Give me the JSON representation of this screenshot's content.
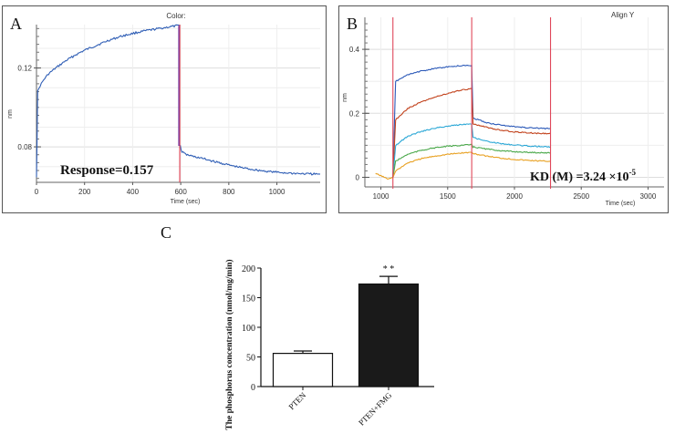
{
  "chart_data": [
    {
      "type": "line",
      "panel_label": "A",
      "title": "Color:",
      "xlabel": "Time (sec)",
      "ylabel": "nm",
      "xlim": [
        0,
        1180
      ],
      "ylim": [
        0.062,
        0.142
      ],
      "xticks": [
        0,
        200,
        400,
        600,
        800,
        1000
      ],
      "yticks": [
        0.08,
        0.12
      ],
      "ytick_labels": [
        "0.08",
        "0.12"
      ],
      "annotation": "Response=0.157",
      "marker_x": 596,
      "series": [
        {
          "name": "association",
          "color": "#2e5db5",
          "x": [
            0,
            5,
            15,
            30,
            50,
            80,
            120,
            160,
            200,
            250,
            300,
            350,
            400,
            450,
            500,
            550,
            596
          ],
          "y": [
            0.065,
            0.108,
            0.111,
            0.114,
            0.117,
            0.12,
            0.1235,
            0.1265,
            0.129,
            0.1315,
            0.134,
            0.136,
            0.1375,
            0.1388,
            0.1398,
            0.1408,
            0.1416
          ]
        },
        {
          "name": "dissociation",
          "color": "#2e5db5",
          "x": [
            598,
            605,
            620,
            650,
            700,
            750,
            800,
            850,
            900,
            950,
            1000,
            1050,
            1100,
            1150,
            1180
          ],
          "y": [
            0.0805,
            0.0775,
            0.0762,
            0.0752,
            0.0738,
            0.0722,
            0.0708,
            0.0695,
            0.0685,
            0.0677,
            0.0671,
            0.0667,
            0.0664,
            0.0662,
            0.0661
          ]
        }
      ]
    },
    {
      "type": "line",
      "panel_label": "B",
      "title": "Align Y",
      "xlabel": "Time (sec)",
      "ylabel": "nm",
      "xlim": [
        880,
        3120
      ],
      "ylim": [
        -0.03,
        0.5
      ],
      "xticks": [
        1000,
        1500,
        2000,
        2500,
        3000
      ],
      "yticks": [
        0,
        0.2,
        0.4
      ],
      "ytick_labels": [
        "0",
        "0.2",
        "0.4"
      ],
      "annotation": "KD (M) =3.24 ×10",
      "annotation_exp": "-5",
      "marker_x": [
        1090,
        1680,
        2270
      ],
      "series": [
        {
          "name": "conc-5",
          "color": "#2b59b8",
          "x": [
            1090,
            1110,
            1200,
            1300,
            1400,
            1500,
            1600,
            1680,
            1690,
            1800,
            1900,
            2000,
            2100,
            2200,
            2270
          ],
          "y": [
            0.0,
            0.3,
            0.32,
            0.332,
            0.34,
            0.345,
            0.349,
            0.35,
            0.185,
            0.17,
            0.163,
            0.158,
            0.155,
            0.153,
            0.152
          ]
        },
        {
          "name": "conc-4",
          "color": "#c2421c",
          "x": [
            1090,
            1110,
            1200,
            1300,
            1400,
            1500,
            1600,
            1680,
            1690,
            1800,
            1900,
            2000,
            2100,
            2200,
            2270
          ],
          "y": [
            0.0,
            0.18,
            0.215,
            0.235,
            0.25,
            0.262,
            0.272,
            0.278,
            0.168,
            0.155,
            0.147,
            0.142,
            0.139,
            0.137,
            0.136
          ]
        },
        {
          "name": "conc-3",
          "color": "#2aa7d6",
          "x": [
            1090,
            1110,
            1200,
            1300,
            1400,
            1500,
            1600,
            1680,
            1690,
            1800,
            1900,
            2000,
            2100,
            2200,
            2270
          ],
          "y": [
            0.0,
            0.1,
            0.128,
            0.143,
            0.153,
            0.16,
            0.165,
            0.168,
            0.125,
            0.112,
            0.105,
            0.101,
            0.098,
            0.096,
            0.095
          ]
        },
        {
          "name": "conc-2",
          "color": "#4aa84a",
          "x": [
            1090,
            1110,
            1200,
            1300,
            1400,
            1500,
            1600,
            1680,
            1690,
            1800,
            1900,
            2000,
            2100,
            2200,
            2270
          ],
          "y": [
            0.0,
            0.05,
            0.072,
            0.084,
            0.092,
            0.097,
            0.1,
            0.102,
            0.095,
            0.088,
            0.083,
            0.08,
            0.078,
            0.077,
            0.076
          ]
        },
        {
          "name": "conc-1",
          "color": "#e8a020",
          "x": [
            960,
            1000,
            1050,
            1090,
            1110,
            1200,
            1300,
            1400,
            1500,
            1600,
            1680,
            1690,
            1800,
            1900,
            2000,
            2100,
            2200,
            2270
          ],
          "y": [
            0.012,
            0.005,
            -0.005,
            0.0,
            0.02,
            0.045,
            0.058,
            0.066,
            0.072,
            0.076,
            0.078,
            0.074,
            0.066,
            0.06,
            0.056,
            0.053,
            0.051,
            0.05
          ]
        }
      ]
    },
    {
      "type": "bar",
      "panel_label": "C",
      "ylabel": "The phosphorus concentration (nmol/mg/min)",
      "categories": [
        "PTEN",
        "PTEN+FMG"
      ],
      "values": [
        56,
        173
      ],
      "errors": [
        4,
        13
      ],
      "colors": [
        "#ffffff",
        "#1a1a1a"
      ],
      "ylim": [
        0,
        200
      ],
      "yticks": [
        0,
        50,
        100,
        150,
        200
      ],
      "significance": [
        "",
        "* *"
      ]
    }
  ]
}
